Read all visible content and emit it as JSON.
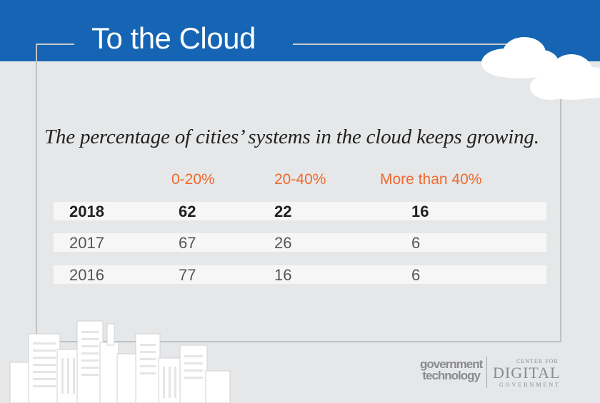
{
  "title": "To the Cloud",
  "subtitle": "The percentage of cities’ systems in the cloud keeps growing.",
  "table": {
    "columns": [
      "0-20%",
      "20-40%",
      "More than 40%"
    ],
    "rows": [
      {
        "year": "2018",
        "values": [
          "62",
          "22",
          "16"
        ]
      },
      {
        "year": "2017",
        "values": [
          "67",
          "26",
          "6"
        ]
      },
      {
        "year": "2016",
        "values": [
          "77",
          "16",
          "6"
        ]
      }
    ]
  },
  "chart_data": {
    "type": "table",
    "title": "To the Cloud",
    "subtitle": "The percentage of cities’ systems in the cloud keeps growing.",
    "columns": [
      "0-20%",
      "20-40%",
      "More than 40%"
    ],
    "rows": [
      "2018",
      "2017",
      "2016"
    ],
    "series": [
      {
        "name": "2018",
        "values": [
          62,
          22,
          16
        ]
      },
      {
        "name": "2017",
        "values": [
          67,
          26,
          6
        ]
      },
      {
        "name": "2016",
        "values": [
          77,
          16,
          6
        ]
      }
    ]
  },
  "logos": {
    "gt_line1": "government",
    "gt_line2": "technology",
    "cdg_top": "CENTER FOR",
    "cdg_mid": "DIGITAL",
    "cdg_bottom": "GOVERNMENT"
  },
  "colors": {
    "banner": "#1565b4",
    "header_accent": "#ef6a2e",
    "background": "#e6e7e8"
  }
}
